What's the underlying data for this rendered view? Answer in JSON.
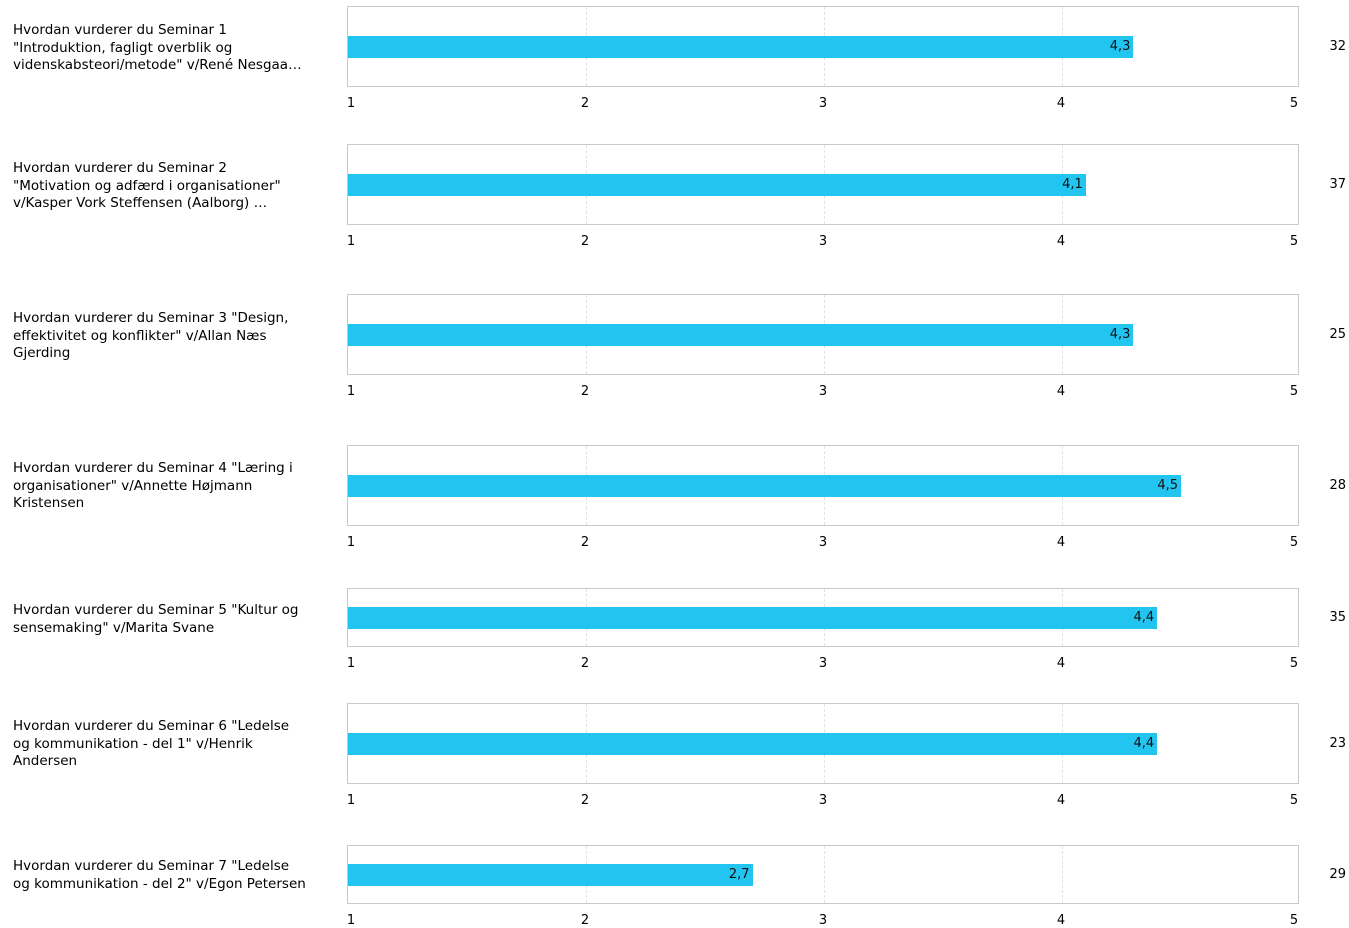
{
  "chart_data": {
    "type": "bar",
    "orientation": "horizontal",
    "xlim": [
      1,
      5
    ],
    "ticks": [
      "1",
      "2",
      "3",
      "4",
      "5"
    ],
    "grid": true,
    "bar_color": "#22c4f0",
    "rows": [
      {
        "label": "Hvordan vurderer du Seminar 1\n\"Introduktion, fagligt overblik og\nvidenskabsteori/metode\" v/René Nesgaa…",
        "value": 4.3,
        "value_label": "4,3",
        "count": "32"
      },
      {
        "label": "Hvordan vurderer du Seminar 2\n\"Motivation og adfærd i organisationer\"\nv/Kasper Vork Steffensen (Aalborg) …",
        "value": 4.1,
        "value_label": "4,1",
        "count": "37"
      },
      {
        "label": "Hvordan vurderer du Seminar 3 \"Design,\neffektivitet og konflikter\" v/Allan Næs\nGjerding",
        "value": 4.3,
        "value_label": "4,3",
        "count": "25"
      },
      {
        "label": "Hvordan vurderer du Seminar 4 \"Læring i\norganisationer\" v/Annette Højmann\nKristensen",
        "value": 4.5,
        "value_label": "4,5",
        "count": "28"
      },
      {
        "label": "Hvordan vurderer du Seminar 5 \"Kultur og\nsensemaking\" v/Marita Svane",
        "value": 4.4,
        "value_label": "4,4",
        "count": "35"
      },
      {
        "label": "Hvordan vurderer du Seminar 6 \"Ledelse\nog kommunikation - del 1\" v/Henrik\nAndersen",
        "value": 4.4,
        "value_label": "4,4",
        "count": "23"
      },
      {
        "label": "Hvordan vurderer du Seminar 7 \"Ledelse\nog kommunikation - del 2\" v/Egon Petersen",
        "value": 2.7,
        "value_label": "2,7",
        "count": "29"
      }
    ]
  }
}
